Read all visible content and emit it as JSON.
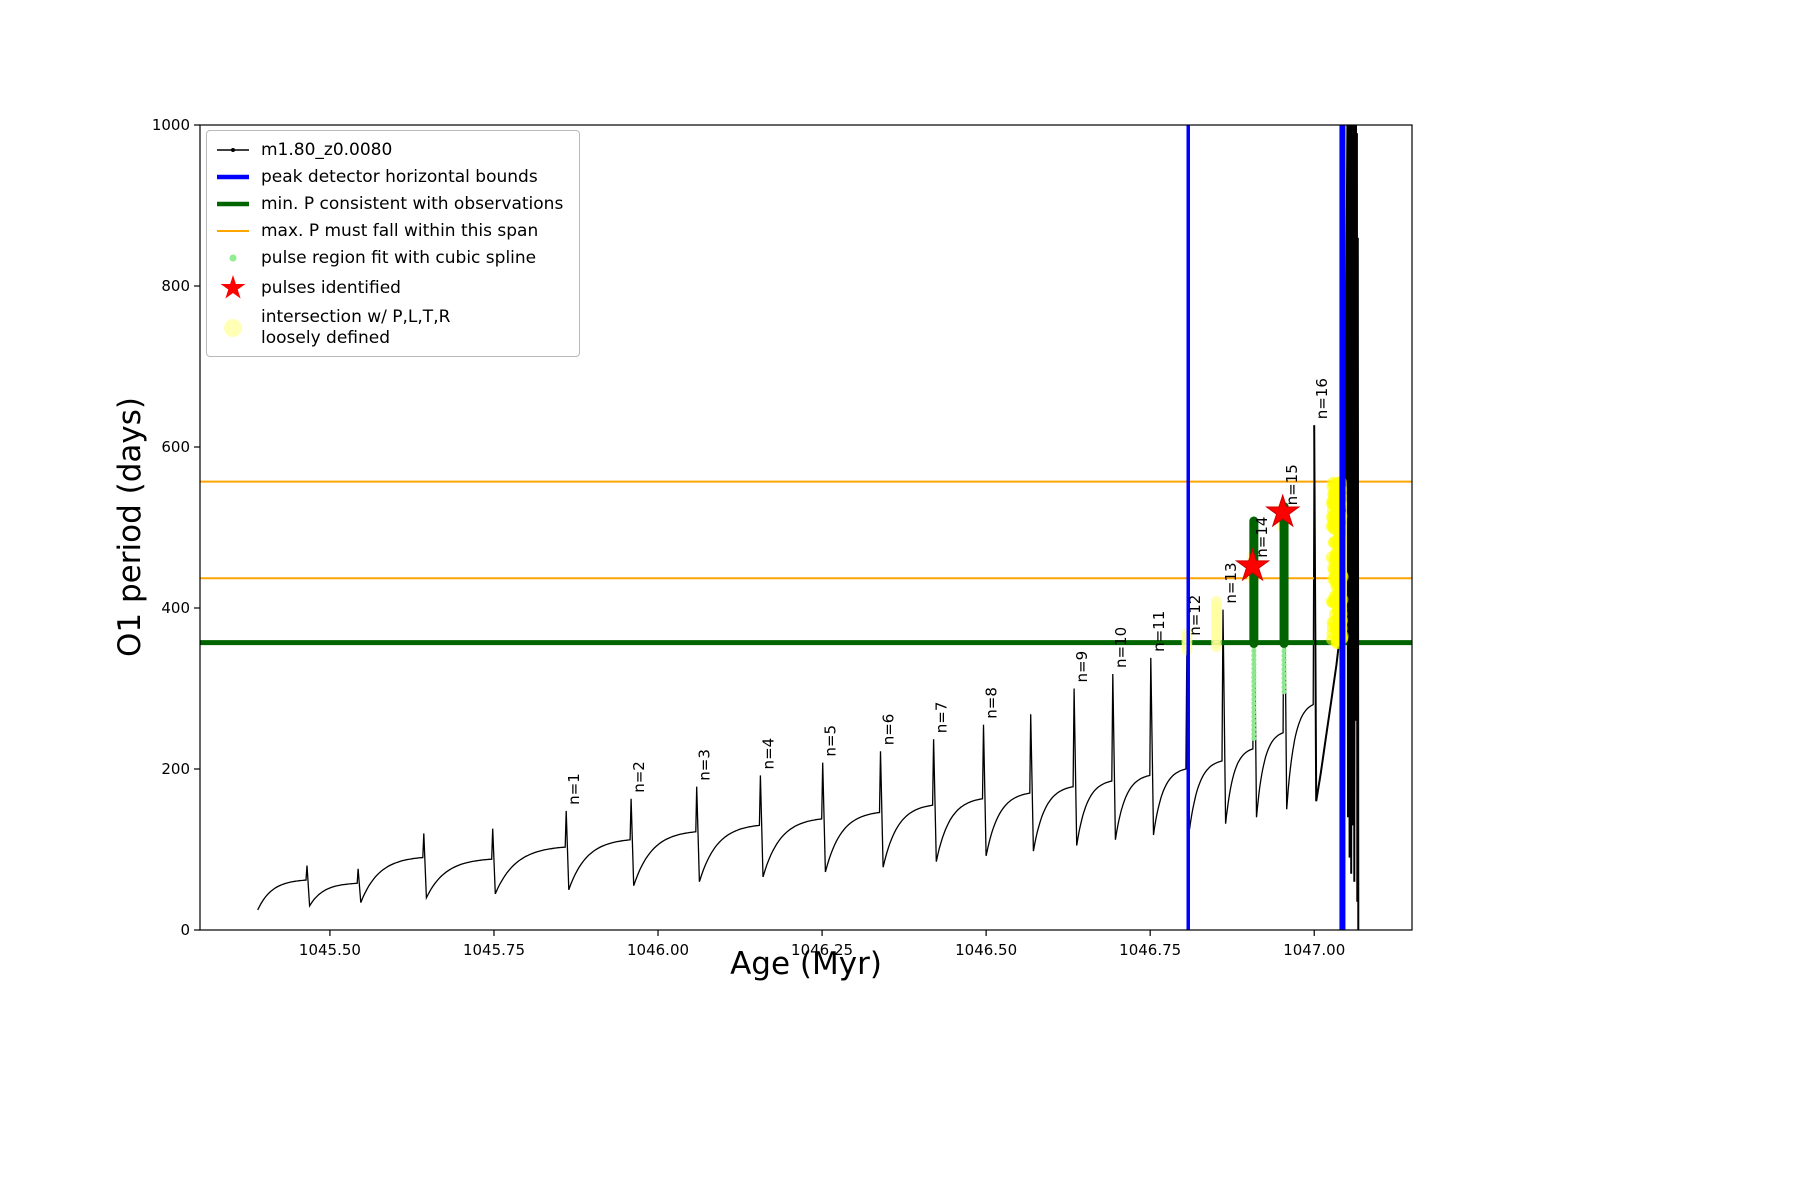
{
  "legend": {
    "items": [
      {
        "marker": "line-dot",
        "icon": "series-line-icon",
        "color": "#000000",
        "label": "m1.80_z0.0080"
      },
      {
        "marker": "thick-line",
        "icon": "peak-bounds-line-icon",
        "color": "#0000ff",
        "label": "peak detector horizontal bounds"
      },
      {
        "marker": "thick-line",
        "icon": "min-period-line-icon",
        "color": "#006400",
        "label": "min. P consistent with observations"
      },
      {
        "marker": "line",
        "icon": "max-period-span-line-icon",
        "color": "#ffa500",
        "label": "max. P must fall within this span"
      },
      {
        "marker": "dot-small",
        "icon": "spline-fit-dot-icon",
        "color": "#90ee90",
        "label": "pulse region fit with cubic spline"
      },
      {
        "marker": "star",
        "icon": "pulse-star-icon",
        "color": "#ff0000",
        "label": "pulses identified"
      },
      {
        "marker": "dot-large",
        "icon": "intersection-dot-icon",
        "color": "#ffffa8",
        "label": "intersection w/ P,L,T,R\nloosely defined"
      }
    ]
  },
  "chart_data": {
    "type": "line",
    "title": "",
    "series_name": "m1.80_z0.0080",
    "xlabel": "Age (Myr)",
    "ylabel": "O1 period (days)",
    "xlim": [
      1045.302,
      1047.149
    ],
    "ylim": [
      0,
      1000
    ],
    "xticks": [
      1045.5,
      1045.75,
      1046.0,
      1046.25,
      1046.5,
      1046.75,
      1047.0
    ],
    "yticks": [
      0,
      200,
      400,
      600,
      800,
      1000
    ],
    "grid": false,
    "legend_position": "upper-left",
    "line_color": "#000000",
    "vlines": [
      {
        "x": 1046.808,
        "color": "#0000ff",
        "width": 3.5,
        "name": "peak-bound-left-line"
      },
      {
        "x": 1047.043,
        "color": "#0000ff",
        "width": 6,
        "name": "peak-bound-right-line"
      }
    ],
    "hlines": [
      {
        "y": 357,
        "color": "#006400",
        "width": 5,
        "name": "min-period-line"
      },
      {
        "y": 437,
        "color": "#ffa500",
        "width": 2,
        "name": "max-period-span-lower-line"
      },
      {
        "y": 557,
        "color": "#ffa500",
        "width": 2,
        "name": "max-period-span-upper-line"
      }
    ],
    "pulse_cycles": [
      {
        "x0": 1045.39,
        "x1": 1045.465,
        "v0": 25,
        "v1": 62,
        "vs": 80
      },
      {
        "x0": 1045.469,
        "x1": 1045.543,
        "v0": 30,
        "v1": 58,
        "vs": 76
      },
      {
        "x0": 1045.547,
        "x1": 1045.643,
        "v0": 34,
        "v1": 90,
        "vs": 120
      },
      {
        "x0": 1045.647,
        "x1": 1045.748,
        "v0": 40,
        "v1": 88,
        "vs": 126
      },
      {
        "x0": 1045.752,
        "x1": 1045.86,
        "v0": 45,
        "v1": 103,
        "vs": 148,
        "label": "n=1"
      },
      {
        "x0": 1045.864,
        "x1": 1045.959,
        "v0": 50,
        "v1": 112,
        "vs": 163,
        "label": "n=2"
      },
      {
        "x0": 1045.963,
        "x1": 1046.059,
        "v0": 55,
        "v1": 122,
        "vs": 178,
        "label": "n=3"
      },
      {
        "x0": 1046.063,
        "x1": 1046.156,
        "v0": 60,
        "v1": 130,
        "vs": 192,
        "label": "n=4"
      },
      {
        "x0": 1046.16,
        "x1": 1046.251,
        "v0": 66,
        "v1": 138,
        "vs": 208,
        "label": "n=5"
      },
      {
        "x0": 1046.255,
        "x1": 1046.339,
        "v0": 72,
        "v1": 146,
        "vs": 222,
        "label": "n=6"
      },
      {
        "x0": 1046.343,
        "x1": 1046.42,
        "v0": 78,
        "v1": 155,
        "vs": 237,
        "label": "n=7"
      },
      {
        "x0": 1046.424,
        "x1": 1046.496,
        "v0": 85,
        "v1": 163,
        "vs": 255,
        "label": "n=8"
      },
      {
        "x0": 1046.5,
        "x1": 1046.568,
        "v0": 92,
        "v1": 170,
        "vs": 268
      },
      {
        "x0": 1046.572,
        "x1": 1046.634,
        "v0": 98,
        "v1": 178,
        "vs": 300,
        "label": "n=9"
      },
      {
        "x0": 1046.638,
        "x1": 1046.693,
        "v0": 105,
        "v1": 185,
        "vs": 318,
        "label": "n=10"
      },
      {
        "x0": 1046.697,
        "x1": 1046.751,
        "v0": 112,
        "v1": 192,
        "vs": 338,
        "label": "n=11"
      },
      {
        "x0": 1046.755,
        "x1": 1046.806,
        "v0": 118,
        "v1": 200,
        "vs": 358,
        "label": "n=12"
      },
      {
        "x0": 1046.81,
        "x1": 1046.861,
        "v0": 125,
        "v1": 210,
        "vs": 398,
        "label": "n=13"
      },
      {
        "x0": 1046.865,
        "x1": 1046.908,
        "v0": 132,
        "v1": 225,
        "vs": 455,
        "label": "n=14"
      },
      {
        "x0": 1046.912,
        "x1": 1046.954,
        "v0": 140,
        "v1": 245,
        "vs": 520,
        "label": "n=15"
      },
      {
        "x0": 1046.958,
        "x1": 1047.0,
        "v0": 150,
        "v1": 280,
        "vs": 627,
        "label": "n=16"
      }
    ],
    "tail": [
      [
        1047.0,
        627
      ],
      [
        1047.003,
        160
      ],
      [
        1047.01,
        195
      ],
      [
        1047.018,
        240
      ],
      [
        1047.026,
        285
      ],
      [
        1047.034,
        330
      ],
      [
        1047.04,
        372
      ],
      [
        1047.045,
        440
      ],
      [
        1047.048,
        560
      ],
      [
        1047.0495,
        860
      ],
      [
        1047.0505,
        1000
      ],
      [
        1047.0515,
        140
      ],
      [
        1047.0527,
        1000
      ],
      [
        1047.0539,
        90
      ],
      [
        1047.0551,
        1000
      ],
      [
        1047.0563,
        70
      ],
      [
        1047.0575,
        1000
      ],
      [
        1047.0587,
        130
      ],
      [
        1047.0599,
        1000
      ],
      [
        1047.061,
        60
      ],
      [
        1047.062,
        1000
      ],
      [
        1047.0628,
        420
      ],
      [
        1047.0636,
        1000
      ],
      [
        1047.0643,
        260
      ],
      [
        1047.065,
        990
      ],
      [
        1047.0657,
        35
      ],
      [
        1047.0664,
        860
      ],
      [
        1047.0671,
        0
      ]
    ],
    "stars": [
      {
        "x": 1046.906,
        "v": 452
      },
      {
        "x": 1046.952,
        "v": 519
      }
    ],
    "scatter_styles": {
      "loose": {
        "color": "#ffff99",
        "r": 5.5,
        "opacity": 0.7
      },
      "loose_bright": {
        "color": "#ffff00",
        "r": 6,
        "opacity": 0.55
      },
      "spline_light": {
        "color": "#90ee90",
        "r": 2.6,
        "opacity": 0.95
      },
      "spline_dark": {
        "color": "#006400",
        "r": 4.5,
        "opacity": 1
      }
    },
    "scatter_columns": [
      {
        "group": "loose",
        "style": "dots",
        "x": 1046.806,
        "vmin": 348,
        "vmax": 368,
        "n": 5
      },
      {
        "group": "loose",
        "style": "dots",
        "x": 1046.851,
        "vmin": 352,
        "vmax": 408,
        "n": 11
      },
      {
        "group": "loose",
        "style": "dots",
        "x": 1046.906,
        "vmin": 436,
        "vmax": 464,
        "n": 6
      },
      {
        "group": "loose",
        "style": "dots",
        "x": 1046.952,
        "vmin": 500,
        "vmax": 524,
        "n": 5
      },
      {
        "group": "loose_bright",
        "style": "cloud",
        "x": 1047.035,
        "vmin": 356,
        "vmax": 558,
        "n": 140,
        "spread": 0.0085
      },
      {
        "group": "loose_bright",
        "style": "bar",
        "x": 1047.04,
        "vmin": 362,
        "vmax": 556,
        "width": 13
      },
      {
        "group": "spline_light",
        "style": "dots",
        "x": 1046.908,
        "vmin": 238,
        "vmax": 352,
        "n": 22
      },
      {
        "group": "spline_light",
        "style": "dots",
        "x": 1046.954,
        "vmin": 296,
        "vmax": 352,
        "n": 11
      },
      {
        "group": "spline_dark",
        "style": "bar",
        "x": 1046.908,
        "vmin": 356,
        "vmax": 508,
        "width": 9
      },
      {
        "group": "spline_dark",
        "style": "bar",
        "x": 1046.954,
        "vmin": 356,
        "vmax": 526,
        "width": 9
      }
    ]
  }
}
